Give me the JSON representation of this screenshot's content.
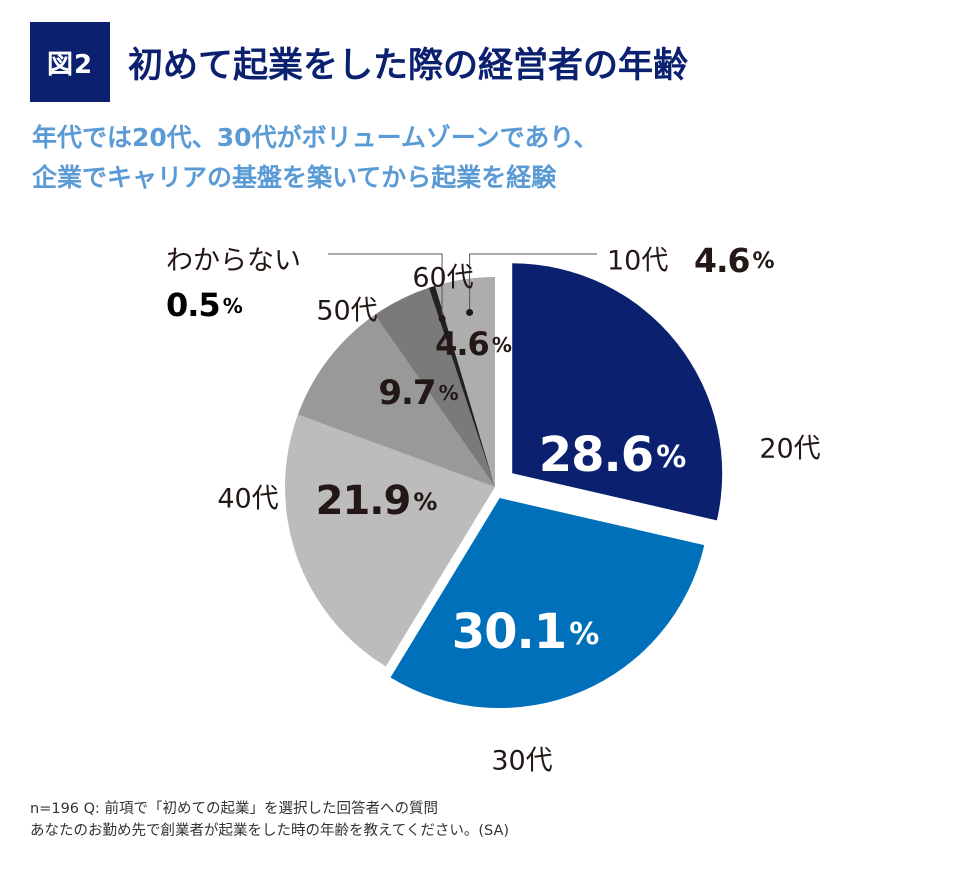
{
  "header": {
    "badge": "図2",
    "title": "初めて起業をした際の経営者の年齢"
  },
  "subtitle": {
    "line1": "年代では20代、30代がボリュームゾーンであり、",
    "line2": "企業でキャリアの基盤を築いてから起業を経験"
  },
  "chart_data": {
    "type": "pie",
    "title": "初めて起業をした際の経営者の年齢",
    "unit": "%",
    "slices": [
      {
        "label": "20代",
        "value": 28.6,
        "value_text": "28.6",
        "color": "#0b2170"
      },
      {
        "label": "30代",
        "value": 30.1,
        "value_text": "30.1",
        "color": "#0070ba"
      },
      {
        "label": "40代",
        "value": 21.9,
        "value_text": "21.9",
        "color": "#bcbcbc"
      },
      {
        "label": "50代",
        "value": 9.7,
        "value_text": "9.7",
        "color": "#999999"
      },
      {
        "label": "60代",
        "value": 4.6,
        "value_text": "4.6",
        "color": "#7a7a7a"
      },
      {
        "label": "わからない",
        "value": 0.5,
        "value_text": "0.5",
        "color": "#222222"
      },
      {
        "label": "10代",
        "value": 4.6,
        "value_text": "4.6",
        "color": "#adadad"
      }
    ]
  },
  "footnote": {
    "line1": "n=196 Q: 前項で「初めての起業」を選択した回答者への質問",
    "line2": "あなたのお勤め先で創業者が起業をした時の年齢を教えてください。(SA)"
  }
}
